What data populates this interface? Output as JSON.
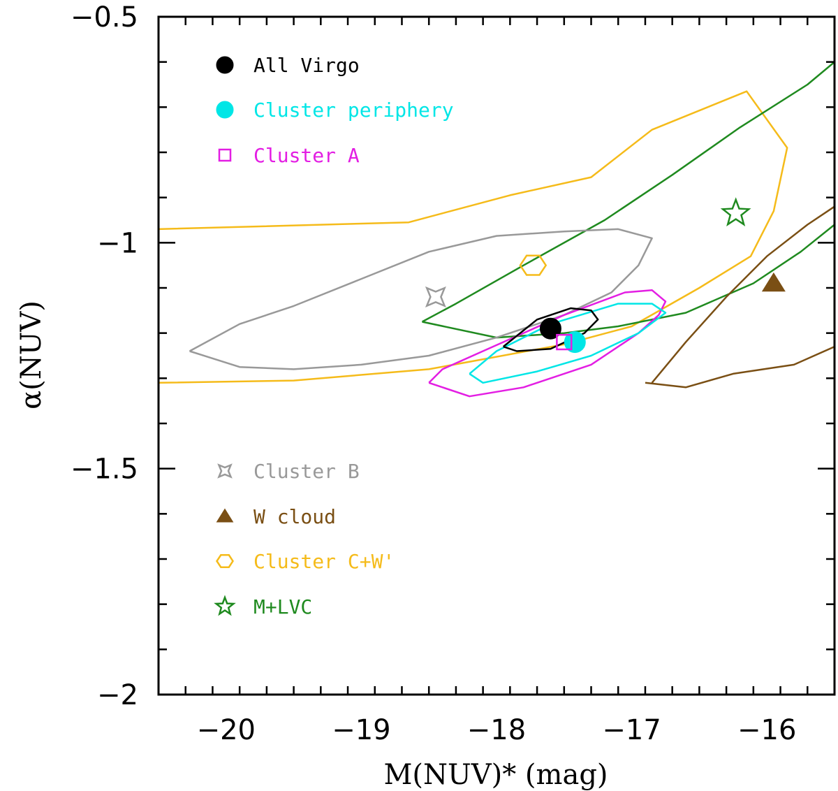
{
  "chart_data": {
    "type": "scatter",
    "xlabel": "M(NUV)* (mag)",
    "ylabel": "α(NUV)",
    "xlim": [
      -20.5,
      -15.5
    ],
    "ylim": [
      -2.0,
      -0.5
    ],
    "x_ticks": [
      "-20",
      "-19",
      "-18",
      "-17",
      "-16"
    ],
    "y_ticks": [
      "-2",
      "-1.5",
      "-1",
      "-0.5"
    ],
    "series": [
      {
        "name": "All Virgo",
        "marker": "filled-circle",
        "color": "#000000",
        "x": -17.6,
        "y": -1.19,
        "contour": [
          [
            -17.95,
            -1.23
          ],
          [
            -17.7,
            -1.17
          ],
          [
            -17.45,
            -1.145
          ],
          [
            -17.3,
            -1.15
          ],
          [
            -17.25,
            -1.17
          ],
          [
            -17.35,
            -1.2
          ],
          [
            -17.6,
            -1.235
          ],
          [
            -17.85,
            -1.24
          ],
          [
            -17.95,
            -1.23
          ]
        ]
      },
      {
        "name": "Cluster periphery",
        "marker": "filled-circle",
        "color": "#00e6e6",
        "x": -17.42,
        "y": -1.22,
        "contour": [
          [
            -18.2,
            -1.29
          ],
          [
            -18.0,
            -1.24
          ],
          [
            -17.6,
            -1.18
          ],
          [
            -17.1,
            -1.135
          ],
          [
            -16.85,
            -1.135
          ],
          [
            -16.75,
            -1.155
          ],
          [
            -16.95,
            -1.2
          ],
          [
            -17.3,
            -1.25
          ],
          [
            -17.7,
            -1.285
          ],
          [
            -18.1,
            -1.31
          ],
          [
            -18.2,
            -1.29
          ]
        ]
      },
      {
        "name": "Cluster A",
        "marker": "open-square",
        "color": "#e31ee3",
        "x": -17.5,
        "y": -1.22,
        "contour": [
          [
            -18.5,
            -1.31
          ],
          [
            -18.4,
            -1.28
          ],
          [
            -18.1,
            -1.24
          ],
          [
            -17.5,
            -1.16
          ],
          [
            -17.05,
            -1.11
          ],
          [
            -16.85,
            -1.105
          ],
          [
            -16.75,
            -1.13
          ],
          [
            -16.8,
            -1.16
          ],
          [
            -16.95,
            -1.2
          ],
          [
            -17.3,
            -1.27
          ],
          [
            -17.8,
            -1.32
          ],
          [
            -18.2,
            -1.34
          ],
          [
            -18.5,
            -1.31
          ]
        ]
      },
      {
        "name": "Cluster B",
        "marker": "open-4-point-star",
        "color": "#999999",
        "x": -18.45,
        "y": -1.12,
        "contour": [
          [
            -20.27,
            -1.24
          ],
          [
            -19.9,
            -1.18
          ],
          [
            -19.5,
            -1.14
          ],
          [
            -19.0,
            -1.08
          ],
          [
            -18.5,
            -1.02
          ],
          [
            -18.0,
            -0.985
          ],
          [
            -17.5,
            -0.975
          ],
          [
            -17.1,
            -0.97
          ],
          [
            -16.85,
            -0.99
          ],
          [
            -16.95,
            -1.05
          ],
          [
            -17.15,
            -1.11
          ],
          [
            -17.5,
            -1.16
          ],
          [
            -18.0,
            -1.21
          ],
          [
            -18.5,
            -1.25
          ],
          [
            -19.0,
            -1.27
          ],
          [
            -19.5,
            -1.28
          ],
          [
            -19.9,
            -1.275
          ],
          [
            -20.27,
            -1.24
          ]
        ]
      },
      {
        "name": "W cloud",
        "marker": "filled-triangle",
        "color": "#7a4f14",
        "x": -15.95,
        "y": -1.09,
        "contour": [
          [
            -16.85,
            -1.31
          ],
          [
            -16.6,
            -1.22
          ],
          [
            -16.3,
            -1.12
          ],
          [
            -16.0,
            -1.03
          ],
          [
            -15.7,
            -0.96
          ],
          [
            -15.5,
            -0.92
          ],
          [
            -15.5,
            -1.23
          ],
          [
            -15.8,
            -1.27
          ],
          [
            -16.25,
            -1.29
          ],
          [
            -16.6,
            -1.32
          ],
          [
            -16.9,
            -1.31
          ]
        ]
      },
      {
        "name": "Cluster C+W'",
        "marker": "open-hexagon",
        "color": "#f5bb1a",
        "x": -17.73,
        "y": -1.05,
        "contour": [
          [
            -20.5,
            -0.97
          ],
          [
            -18.65,
            -0.955
          ],
          [
            -17.9,
            -0.895
          ],
          [
            -17.3,
            -0.855
          ],
          [
            -16.85,
            -0.75
          ],
          [
            -16.15,
            -0.665
          ],
          [
            -15.85,
            -0.79
          ],
          [
            -15.95,
            -0.93
          ],
          [
            -16.12,
            -1.03
          ],
          [
            -16.5,
            -1.1
          ],
          [
            -17.0,
            -1.185
          ],
          [
            -17.5,
            -1.225
          ],
          [
            -18.5,
            -1.28
          ],
          [
            -19.5,
            -1.305
          ],
          [
            -20.5,
            -1.31
          ]
        ]
      },
      {
        "name": "M+LVC",
        "marker": "open-5-point-star",
        "color": "#1f8a1f",
        "x": -16.23,
        "y": -0.935,
        "contour": [
          [
            -18.55,
            -1.175
          ],
          [
            -18.3,
            -1.135
          ],
          [
            -17.8,
            -1.05
          ],
          [
            -17.2,
            -0.95
          ],
          [
            -16.7,
            -0.85
          ],
          [
            -16.2,
            -0.745
          ],
          [
            -15.7,
            -0.65
          ],
          [
            -15.5,
            -0.6
          ],
          [
            -15.5,
            -0.96
          ],
          [
            -15.75,
            -1.02
          ],
          [
            -16.1,
            -1.09
          ],
          [
            -16.6,
            -1.155
          ],
          [
            -17.1,
            -1.185
          ],
          [
            -17.5,
            -1.2
          ],
          [
            -18.0,
            -1.21
          ],
          [
            -18.55,
            -1.175
          ]
        ]
      }
    ],
    "legend": [
      {
        "label": "All Virgo",
        "position": "top-left"
      },
      {
        "label": "Cluster periphery",
        "position": "top-left"
      },
      {
        "label": "Cluster A",
        "position": "top-left"
      },
      {
        "label": "Cluster B",
        "position": "bottom-left"
      },
      {
        "label": "W cloud",
        "position": "bottom-left"
      },
      {
        "label": "Cluster C+W'",
        "position": "bottom-left"
      },
      {
        "label": "M+LVC",
        "position": "bottom-left"
      }
    ]
  }
}
